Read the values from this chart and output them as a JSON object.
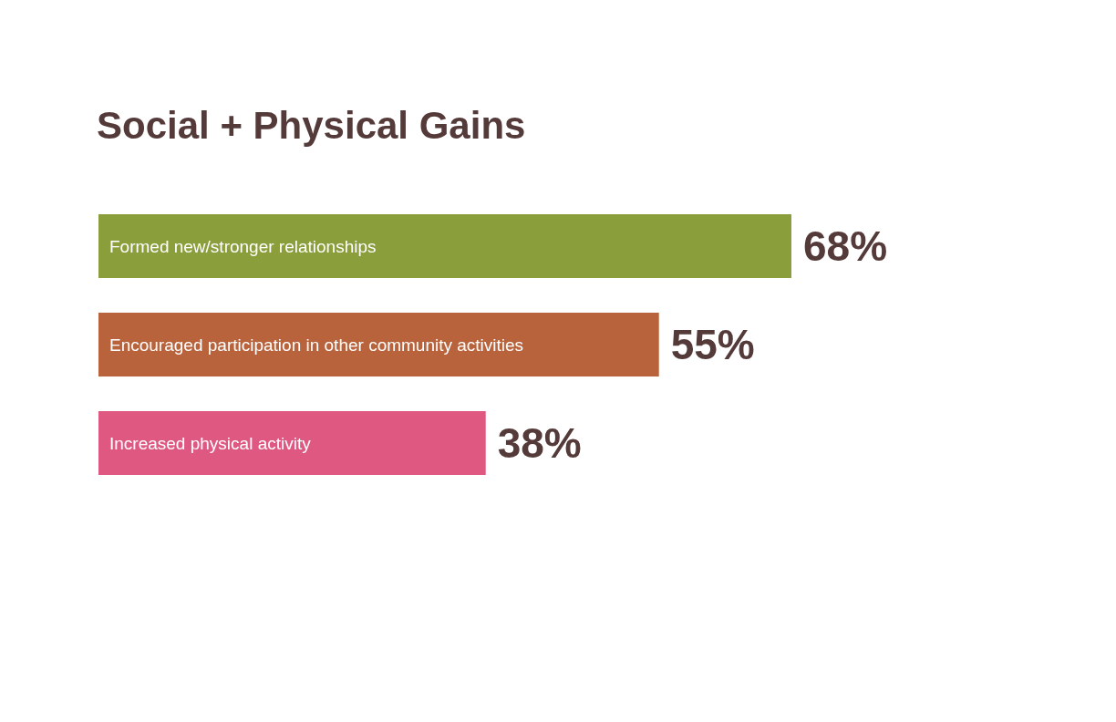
{
  "chart_data": {
    "type": "bar",
    "orientation": "horizontal",
    "title": "Social + Physical Gains",
    "categories": [
      "Formed new/stronger relationships",
      "Encouraged participation in other community activities",
      "Increased physical activity"
    ],
    "values": [
      68,
      55,
      38
    ],
    "colors": [
      "#8a9e3c",
      "#b9633d",
      "#de5882"
    ],
    "value_labels": [
      "68%",
      "55%",
      "38%"
    ]
  }
}
